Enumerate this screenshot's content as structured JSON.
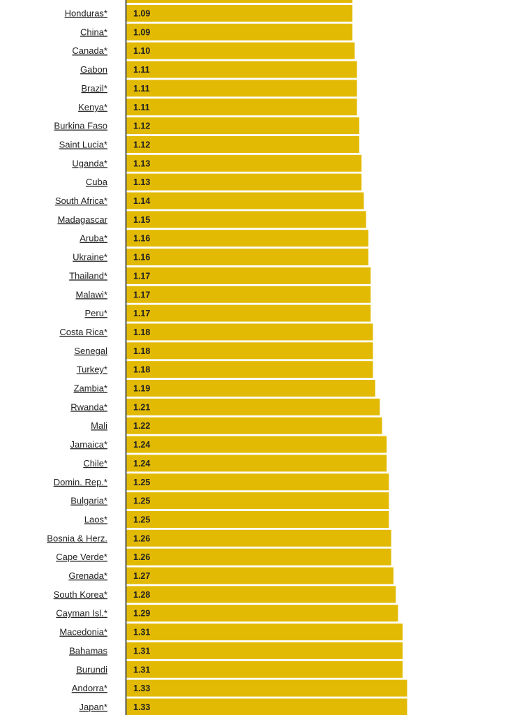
{
  "chart_data": {
    "type": "bar",
    "orientation": "horizontal",
    "bar_color": "#e2ba03",
    "axis_color": "#555555",
    "label_color": "#222222",
    "categories": [
      "Honduras*",
      "China*",
      "Canada*",
      "Gabon",
      "Brazil*",
      "Kenya*",
      "Burkina Faso",
      "Saint Lucia*",
      "Uganda*",
      "Cuba",
      "South Africa*",
      "Madagascar",
      "Aruba*",
      "Ukraine*",
      "Thailand*",
      "Malawi*",
      "Peru*",
      "Costa Rica*",
      "Senegal",
      "Turkey*",
      "Zambia*",
      "Rwanda*",
      "Mali",
      "Jamaica*",
      "Chile*",
      "Domin. Rep.*",
      "Bulgaria*",
      "Laos*",
      "Bosnia & Herz.",
      "Cape Verde*",
      "Grenada*",
      "South Korea*",
      "Cayman Isl.*",
      "Macedonia*",
      "Bahamas",
      "Burundi",
      "Andorra*",
      "Japan*"
    ],
    "values": [
      1.09,
      1.09,
      1.1,
      1.11,
      1.11,
      1.11,
      1.12,
      1.12,
      1.13,
      1.13,
      1.14,
      1.15,
      1.16,
      1.16,
      1.17,
      1.17,
      1.17,
      1.18,
      1.18,
      1.18,
      1.19,
      1.21,
      1.22,
      1.24,
      1.24,
      1.25,
      1.25,
      1.25,
      1.26,
      1.26,
      1.27,
      1.28,
      1.29,
      1.31,
      1.31,
      1.31,
      1.33,
      1.33
    ],
    "value_labels": [
      "1.09",
      "1.09",
      "1.10",
      "1.11",
      "1.11",
      "1.11",
      "1.12",
      "1.12",
      "1.13",
      "1.13",
      "1.14",
      "1.15",
      "1.16",
      "1.16",
      "1.17",
      "1.17",
      "1.17",
      "1.18",
      "1.18",
      "1.18",
      "1.19",
      "1.21",
      "1.22",
      "1.24",
      "1.24",
      "1.25",
      "1.25",
      "1.25",
      "1.26",
      "1.26",
      "1.27",
      "1.28",
      "1.29",
      "1.31",
      "1.31",
      "1.31",
      "1.33",
      "1.33"
    ],
    "title": "",
    "xlabel": "",
    "ylabel": "",
    "grid": false,
    "legend": "none"
  }
}
